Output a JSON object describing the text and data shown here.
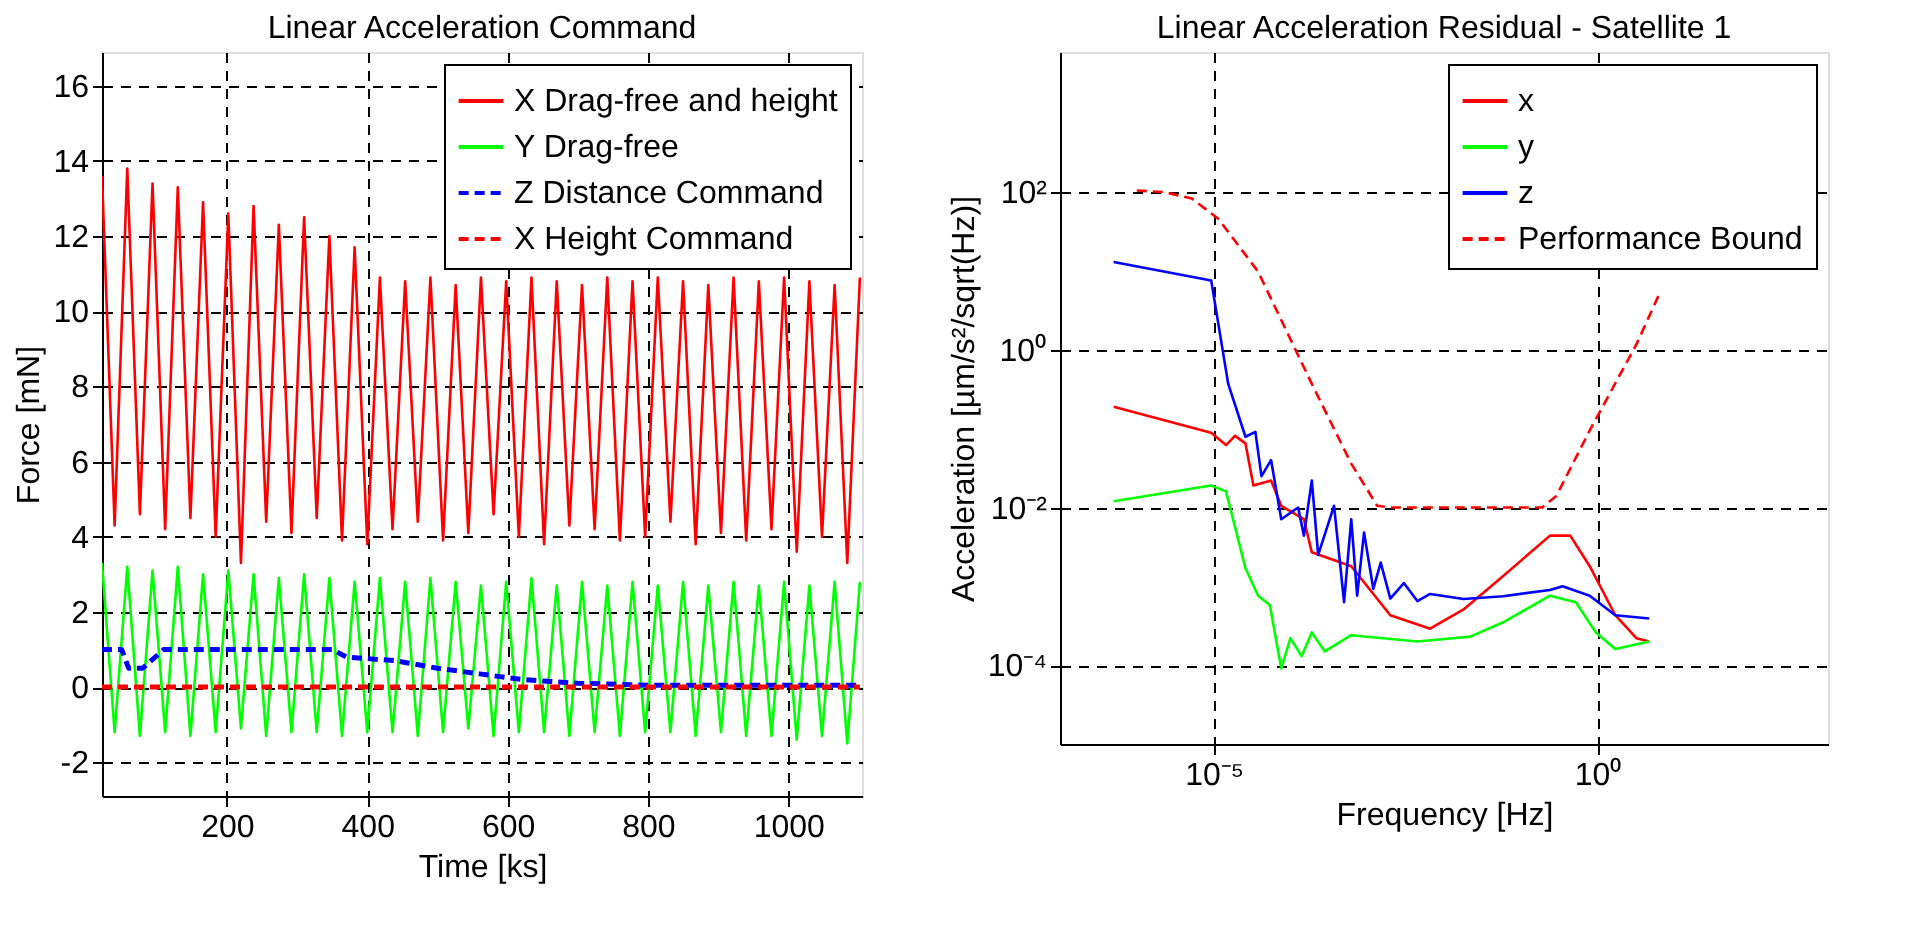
{
  "chart_data": [
    {
      "type": "line",
      "title": "Linear Acceleration Command",
      "xlabel": "Time [ks]",
      "ylabel": "Force [mN]",
      "xlim": [
        22,
        1105
      ],
      "ylim": [
        -2.9,
        16.9
      ],
      "xticks": [
        200,
        400,
        600,
        800,
        1000
      ],
      "yticks": [
        -2,
        0,
        2,
        4,
        6,
        8,
        10,
        12,
        14,
        16
      ],
      "grid": true,
      "legend": "top right",
      "marker": "none",
      "x": [
        22,
        40,
        58,
        76,
        94,
        112,
        130,
        148,
        166,
        184,
        202,
        220,
        238,
        256,
        274,
        292,
        310,
        328,
        346,
        364,
        382,
        400,
        418,
        436,
        454,
        472,
        490,
        508,
        526,
        544,
        562,
        580,
        598,
        616,
        634,
        652,
        670,
        688,
        706,
        724,
        742,
        760,
        778,
        796,
        814,
        832,
        850,
        868,
        886,
        904,
        922,
        940,
        958,
        976,
        994,
        1012,
        1030,
        1048,
        1066,
        1084,
        1102
      ],
      "series": [
        {
          "name": "X Drag-free and height",
          "color": "#ff0000",
          "line_style": "solid",
          "values": [
            13.6,
            4.3,
            13.8,
            4.6,
            13.4,
            4.2,
            13.3,
            4.5,
            12.9,
            4.0,
            12.6,
            3.3,
            12.8,
            4.4,
            12.3,
            4.1,
            12.5,
            4.5,
            12.0,
            3.9,
            11.7,
            3.8,
            10.9,
            4.2,
            10.8,
            4.4,
            10.9,
            3.9,
            10.7,
            4.1,
            10.9,
            4.6,
            10.8,
            4.0,
            10.9,
            3.8,
            10.8,
            4.3,
            10.7,
            4.2,
            10.9,
            3.9,
            10.8,
            4.0,
            10.9,
            4.4,
            10.8,
            3.8,
            10.7,
            4.1,
            10.9,
            3.9,
            10.8,
            4.2,
            10.9,
            3.6,
            10.8,
            4.0,
            10.7,
            3.3,
            10.9
          ]
        },
        {
          "name": "Y Drag-free",
          "color": "#00ff00",
          "line_style": "solid",
          "values": [
            3.3,
            -1.2,
            3.2,
            -1.3,
            3.1,
            -1.2,
            3.2,
            -1.3,
            3.0,
            -1.2,
            3.1,
            -1.1,
            3.0,
            -1.3,
            2.9,
            -1.2,
            3.0,
            -1.2,
            2.9,
            -1.3,
            2.8,
            -1.2,
            2.9,
            -1.2,
            2.8,
            -1.3,
            2.9,
            -1.2,
            2.8,
            -1.1,
            2.7,
            -1.3,
            2.8,
            -1.2,
            2.9,
            -1.2,
            2.7,
            -1.3,
            2.8,
            -1.2,
            2.7,
            -1.3,
            2.8,
            -1.2,
            2.7,
            -1.2,
            2.8,
            -1.3,
            2.7,
            -1.2,
            2.8,
            -1.3,
            2.7,
            -1.3,
            2.8,
            -1.4,
            2.7,
            -1.3,
            2.8,
            -1.5,
            2.8
          ]
        },
        {
          "name": "Z Distance Command",
          "color": "#0000ff",
          "line_style": "dashed",
          "x": [
            22,
            50,
            60,
            80,
            110,
            350,
            370,
            440,
            500,
            560,
            620,
            700,
            800,
            1102
          ],
          "values": [
            1.0,
            1.0,
            0.5,
            0.5,
            1.0,
            1.0,
            0.8,
            0.7,
            0.5,
            0.35,
            0.2,
            0.1,
            0.05,
            0.05
          ]
        },
        {
          "name": "X Height Command",
          "color": "#ff0000",
          "line_style": "dashed",
          "x": [
            22,
            1102
          ],
          "values": [
            0,
            0
          ]
        }
      ]
    },
    {
      "type": "line",
      "title": "Linear Acceleration Residual - Satellite 1",
      "xlabel": "Frequency [Hz]",
      "ylabel": "Acceleration  [µm/s²/sqrt(Hz)]",
      "log": "xy",
      "xlim": [
        1e-07,
        1000
      ],
      "ylim": [
        1e-05,
        6000
      ],
      "xticks": [
        {
          "value": 1e-05,
          "label": "10⁻⁵"
        },
        {
          "value": 1,
          "label": "10⁰"
        }
      ],
      "yticks": [
        {
          "value": 0.0001,
          "label": "10⁻⁴"
        },
        {
          "value": 0.01,
          "label": "10⁻²"
        },
        {
          "value": 1,
          "label": "10⁰"
        },
        {
          "value": 100,
          "label": "10²"
        }
      ],
      "grid": true,
      "legend": "top right",
      "marker": "none",
      "series": [
        {
          "name": "x",
          "color": "#ff0000",
          "line_style": "solid",
          "x": [
            5e-07,
            9.3e-06,
            1.45e-05,
            1.9e-05,
            2.6e-05,
            3.3e-05,
            5.6e-05,
            7.6e-05,
            0.00015,
            0.00019,
            0.00062,
            0.002,
            0.0066,
            0.018,
            0.059,
            0.24,
            0.44,
            0.79,
            1.7,
            3.2,
            4.7
          ],
          "values": [
            0.19,
            0.089,
            0.062,
            0.081,
            0.065,
            0.019,
            0.022,
            0.0105,
            0.0071,
            0.0027,
            0.0018,
            0.00043,
            0.00029,
            0.00051,
            0.00135,
            0.0044,
            0.0044,
            0.0018,
            0.00043,
            0.00022,
            0.0002
          ]
        },
        {
          "name": "y",
          "color": "#00ff00",
          "line_style": "solid",
          "x": [
            5e-07,
            9.3e-06,
            1.45e-05,
            2.6e-05,
            3.8e-05,
            5.4e-05,
            7.6e-05,
            0.0001,
            0.00014,
            0.00019,
            0.00028,
            0.00062,
            0.0045,
            0.022,
            0.059,
            0.24,
            0.52,
            0.95,
            1.7,
            4.7
          ],
          "values": [
            0.012,
            0.019,
            0.016,
            0.0017,
            0.00076,
            0.00058,
            9.1e-05,
            0.00022,
            0.00013,
            0.00026,
            0.00015,
            0.00024,
            0.0002,
            0.00023,
            0.00035,
            0.00076,
            0.00063,
            0.00026,
            0.00016,
            0.0002
          ]
        },
        {
          "name": "z",
          "color": "#0000ff",
          "line_style": "solid",
          "x": [
            5e-07,
            9.3e-06,
            1.55e-05,
            2.6e-05,
            3.5e-05,
            4.2e-05,
            5.6e-05,
            7.6e-05,
            0.000126,
            0.00015,
            0.00019,
            0.00023,
            0.00037,
            0.0005,
            0.00062,
            0.00074,
            0.00091,
            0.0012,
            0.0015,
            0.002,
            0.003,
            0.0045,
            0.0066,
            0.018,
            0.059,
            0.24,
            0.35,
            0.79,
            1.7,
            4.7
          ],
          "values": [
            13,
            7.6,
            0.37,
            0.079,
            0.091,
            0.025,
            0.04,
            0.0071,
            0.01,
            0.0044,
            0.022,
            0.0025,
            0.0105,
            0.00063,
            0.0071,
            0.00076,
            0.0048,
            0.00093,
            0.002,
            0.0007,
            0.0011,
            0.00065,
            0.0008,
            0.00069,
            0.00075,
            0.0009,
            0.001,
            0.00076,
            0.00043,
            0.00039
          ]
        },
        {
          "name": "Performance Bound",
          "color": "#ff0000",
          "line_style": "dashed",
          "x": [
            1e-06,
            2.3e-06,
            5.2e-06,
            1.15e-05,
            3.8e-05,
            0.00019,
            0.00062,
            0.00135,
            0.002,
            0.19,
            0.29,
            0.79,
            3.2,
            6.3
          ],
          "values": [
            105,
            100,
            83,
            46,
            9.8,
            0.37,
            0.036,
            0.0105,
            0.01,
            0.01,
            0.014,
            0.095,
            1.17,
            5.0
          ]
        }
      ]
    }
  ]
}
